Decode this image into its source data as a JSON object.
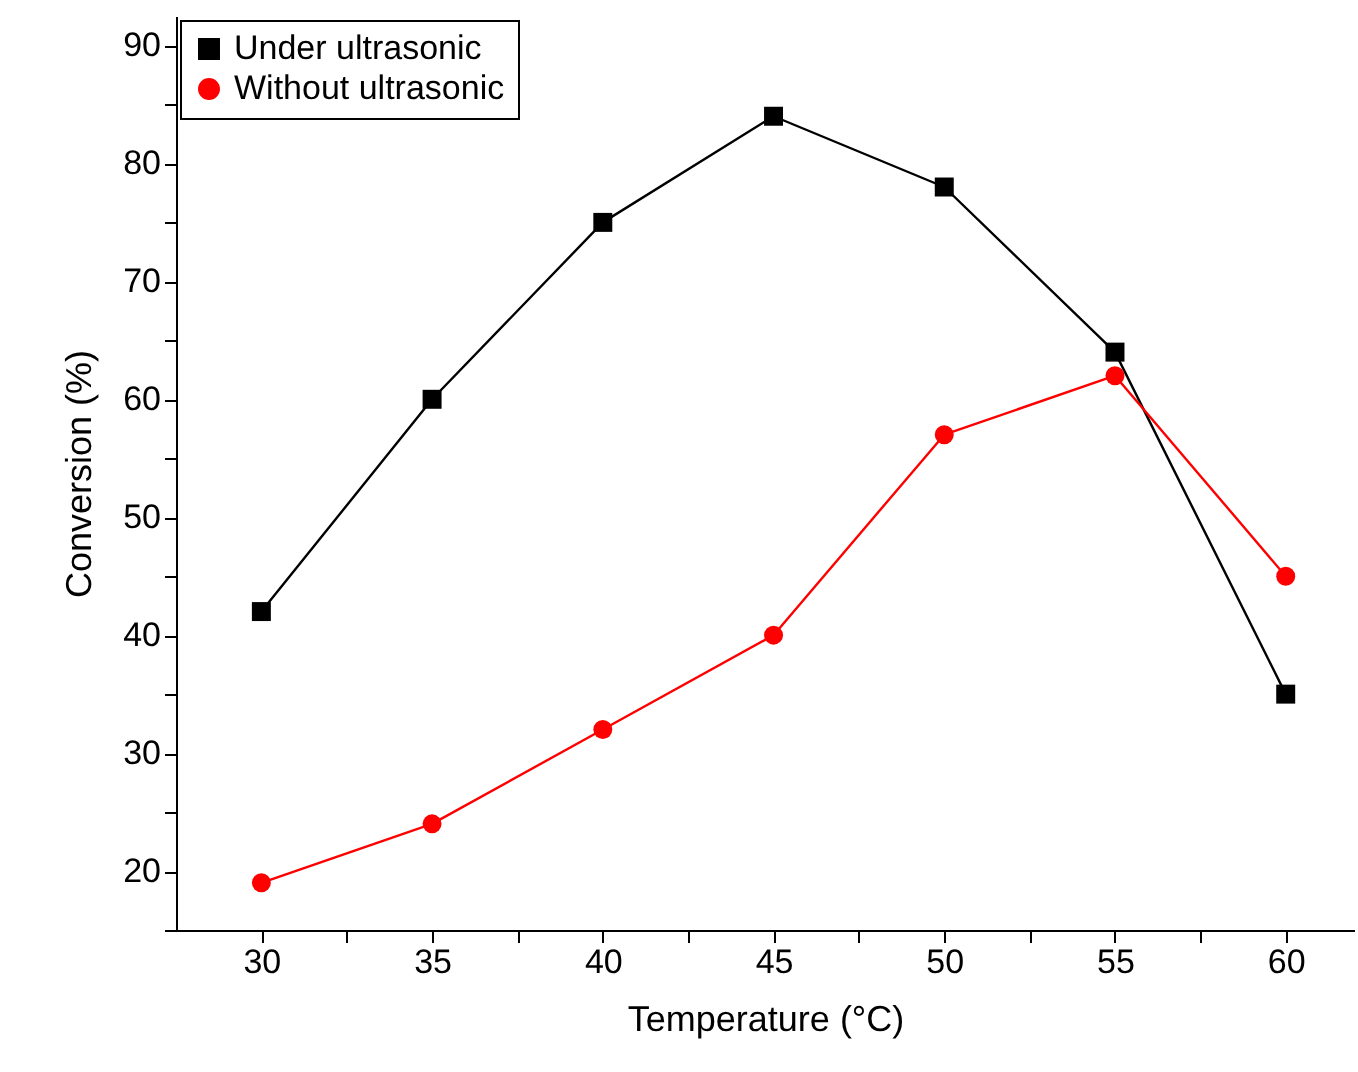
{
  "chart_data": {
    "type": "line",
    "xlabel": "Temperature (°C)",
    "ylabel": "Conversion (%)",
    "x": [
      30,
      35,
      40,
      45,
      50,
      55,
      60
    ],
    "series": [
      {
        "name": "Under ultrasonic",
        "color": "#000000",
        "marker": "square",
        "values": [
          42,
          60,
          75,
          84,
          78,
          64,
          35
        ]
      },
      {
        "name": "Without ultrasonic",
        "color": "#ff0000",
        "marker": "circle",
        "values": [
          19,
          24,
          32,
          40,
          57,
          62,
          45
        ]
      }
    ],
    "xlim": [
      27.5,
      62
    ],
    "xticks": [
      30,
      {
        "value": 32.5,
        "label": null
      },
      35,
      {
        "value": 37.5,
        "label": null
      },
      40,
      {
        "value": 42.5,
        "label": null
      },
      45,
      {
        "value": 47.5,
        "label": null
      },
      50,
      {
        "value": 52.5,
        "label": null
      },
      55,
      {
        "value": 57.5,
        "label": null
      },
      60
    ],
    "ylim": [
      15,
      92.5
    ],
    "yticks": [
      {
        "value": 15,
        "label": null
      },
      20,
      {
        "value": 25,
        "label": null
      },
      30,
      {
        "value": 35,
        "label": null
      },
      40,
      {
        "value": 45,
        "label": null
      },
      50,
      {
        "value": 55,
        "label": null
      },
      60,
      {
        "value": 65,
        "label": null
      },
      70,
      {
        "value": 75,
        "label": null
      },
      80,
      {
        "value": 85,
        "label": null
      },
      90
    ],
    "grid": false,
    "legend": "top left",
    "line_style": "solid"
  }
}
